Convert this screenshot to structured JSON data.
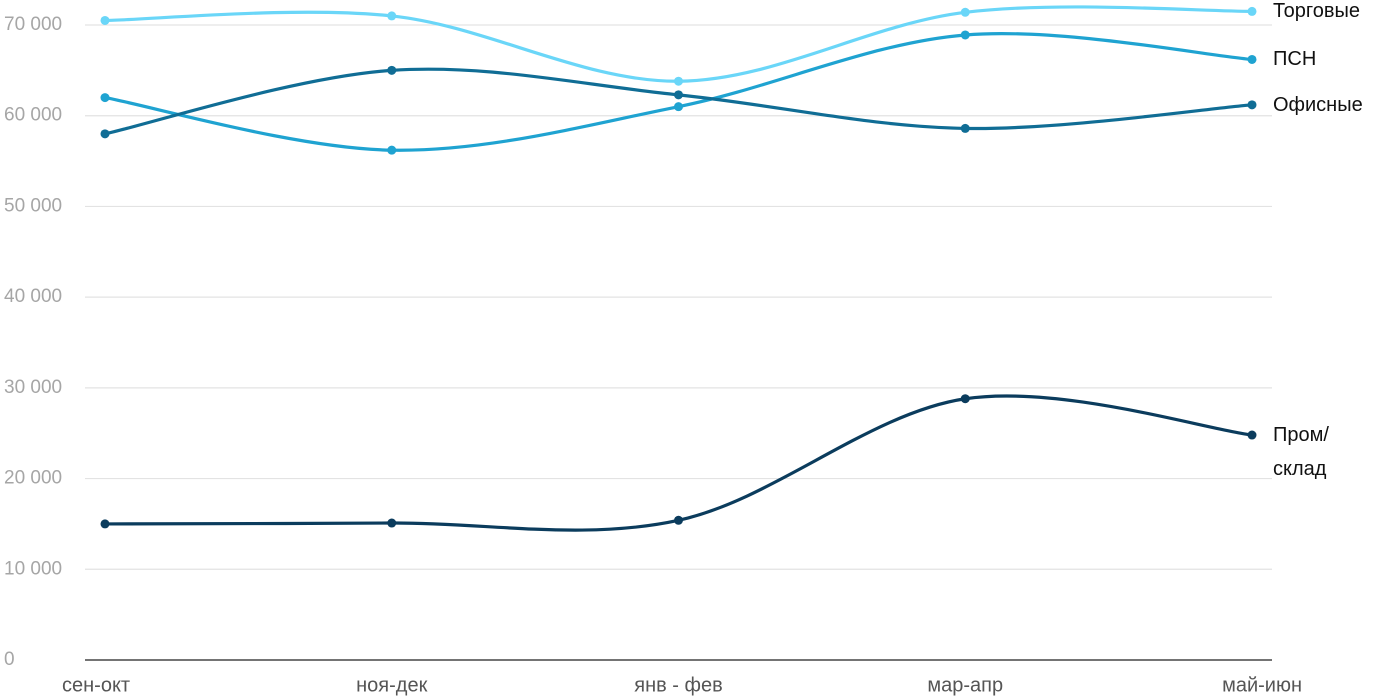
{
  "chart_data": {
    "type": "line",
    "categories": [
      "сен-окт",
      "ноя-дек",
      "янв - фев",
      "мар-апр",
      "май-июн"
    ],
    "series": [
      {
        "name": "Торговые",
        "color": "#6ad6f8",
        "values": [
          70500,
          71000,
          63800,
          71400,
          71500
        ]
      },
      {
        "name": "ПСН",
        "color": "#1fa3d1",
        "values": [
          62000,
          56200,
          61000,
          68900,
          66200
        ]
      },
      {
        "name": "Офисные",
        "color": "#106d95",
        "values": [
          58000,
          65000,
          62300,
          58600,
          61200
        ]
      },
      {
        "name": "Пром/склад",
        "color": "#0b3c5d",
        "values": [
          15000,
          15100,
          15400,
          28800,
          24800
        ]
      }
    ],
    "ylim": [
      0,
      70000
    ],
    "yticks": [
      0,
      {
        "value": 10000,
        "label": "10 000"
      },
      {
        "value": 20000,
        "label": "20 000"
      },
      {
        "value": 30000,
        "label": "30 000"
      },
      {
        "value": 40000,
        "label": "40 000"
      },
      {
        "value": 50000,
        "label": "50 000"
      },
      {
        "value": 60000,
        "label": "60 000"
      },
      {
        "value": 70000,
        "label": "70 000"
      }
    ],
    "grid": true
  }
}
